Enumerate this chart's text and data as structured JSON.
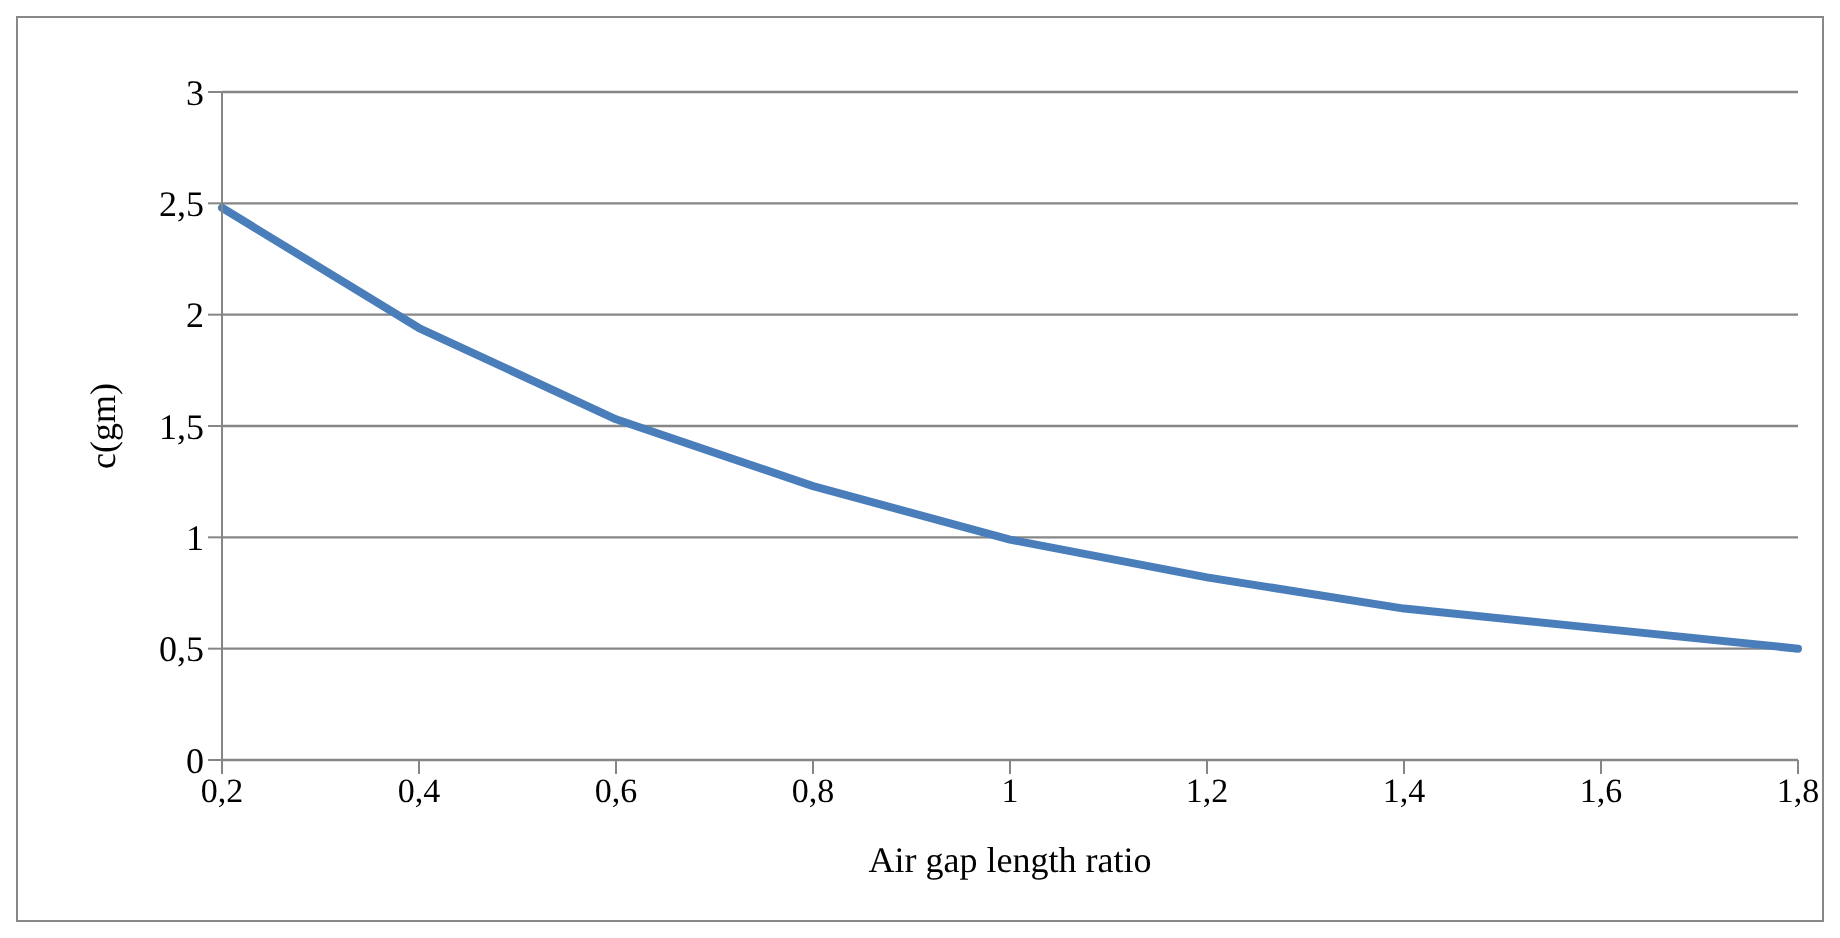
{
  "chart_data": {
    "type": "line",
    "xlabel": "Air gap length ratio",
    "ylabel": "c(gm)",
    "categories": [
      "0,2",
      "0,4",
      "0,6",
      "0,8",
      "1",
      "1,2",
      "1,4",
      "1,6",
      "1,8"
    ],
    "series": [
      {
        "color": "#4a7ebb",
        "values": [
          2.48,
          1.94,
          1.53,
          1.23,
          0.99,
          0.82,
          0.68,
          0.59,
          0.5
        ]
      }
    ],
    "ylim": [
      0,
      3
    ],
    "yticks": [
      0,
      {
        "value": 0.5,
        "label": "0,5"
      },
      1,
      {
        "value": 1.5,
        "label": "1,5"
      },
      2,
      {
        "value": 2.5,
        "label": "2,5"
      },
      3
    ],
    "grid": "y",
    "marker": "none",
    "line_style": "solid"
  }
}
